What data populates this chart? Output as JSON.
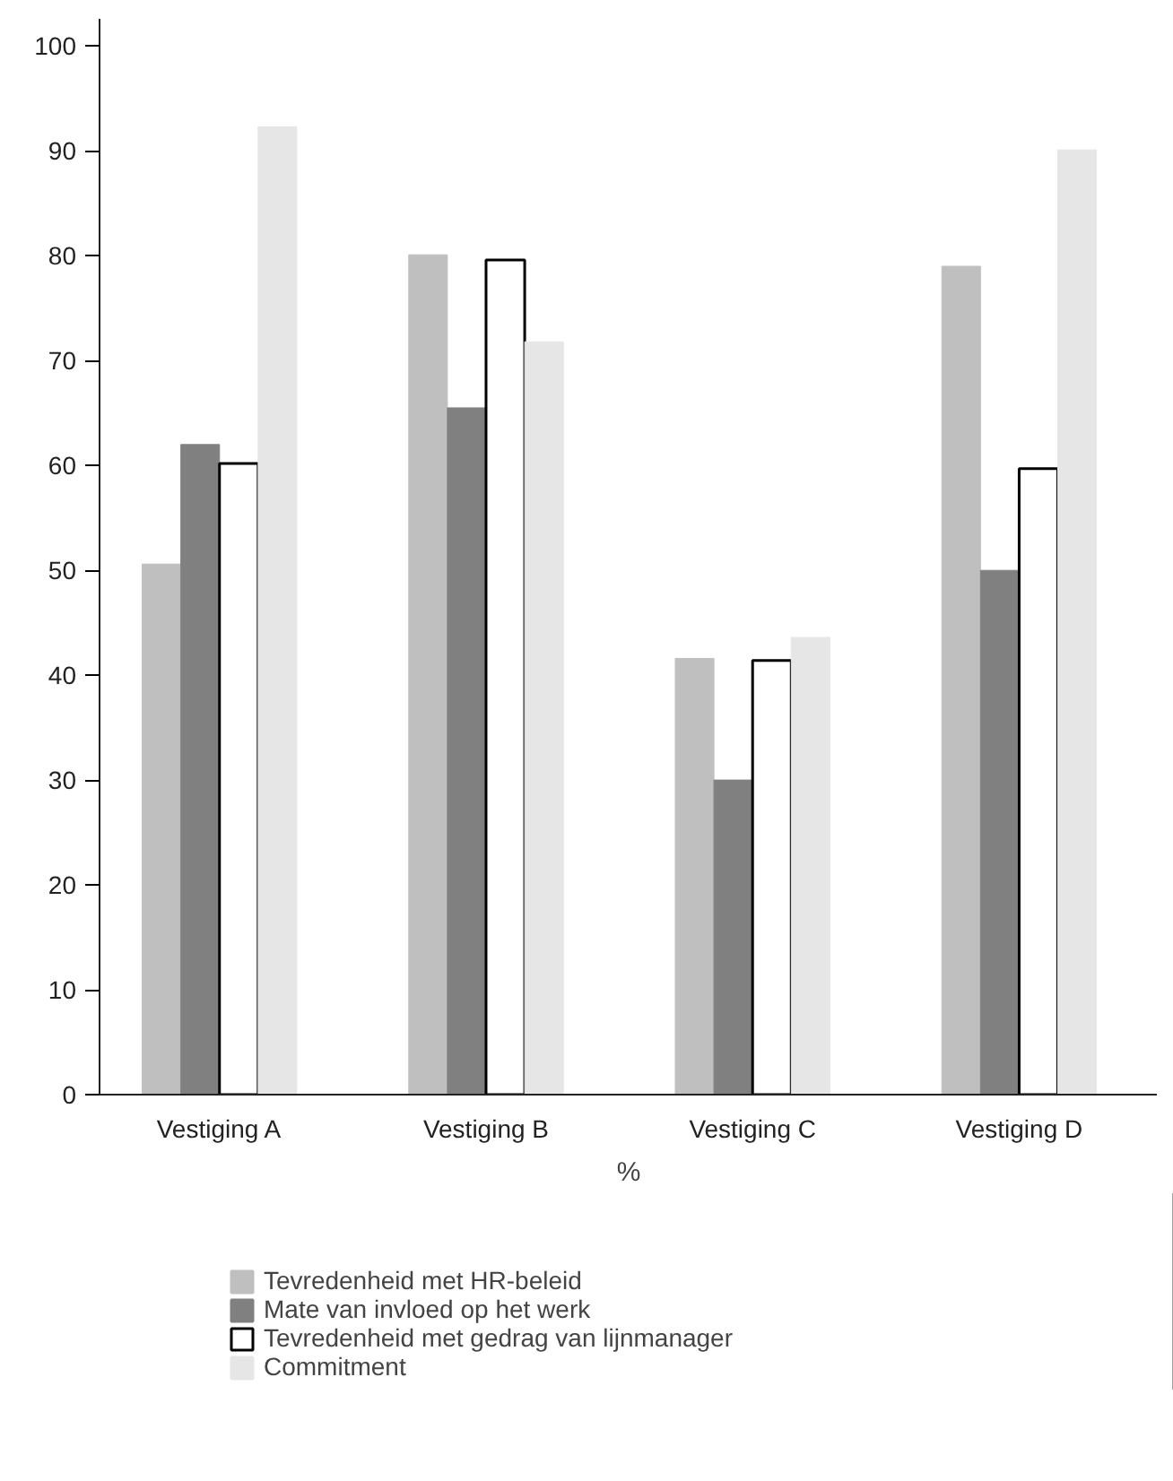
{
  "chart_data": {
    "type": "bar",
    "xlabel": "%",
    "categories": [
      "Vestiging A",
      "Vestiging B",
      "Vestiging C",
      "Vestiging D"
    ],
    "series": [
      {
        "name": "Tevredenheid met HR-beleid",
        "color": "#bfbfbf",
        "values": [
          50.6,
          80.1,
          41.6,
          79.0
        ]
      },
      {
        "name": "Mate van invloed op het werk",
        "color": "#808080",
        "values": [
          62.0,
          65.5,
          30.0,
          50.0
        ]
      },
      {
        "name": "Tevredenheid met gedrag van lijnmanager",
        "color": "#ffffff",
        "values": [
          60.2,
          79.6,
          41.4,
          59.7
        ]
      },
      {
        "name": "Commitment",
        "color": "#e6e6e6",
        "values": [
          92.3,
          71.8,
          43.6,
          90.1
        ]
      }
    ],
    "ylim": [
      0,
      102.6
    ],
    "yticks": [
      0,
      10,
      20,
      30,
      40,
      50,
      60,
      70,
      80,
      90,
      100
    ],
    "grid": false,
    "legend": "bottom"
  }
}
